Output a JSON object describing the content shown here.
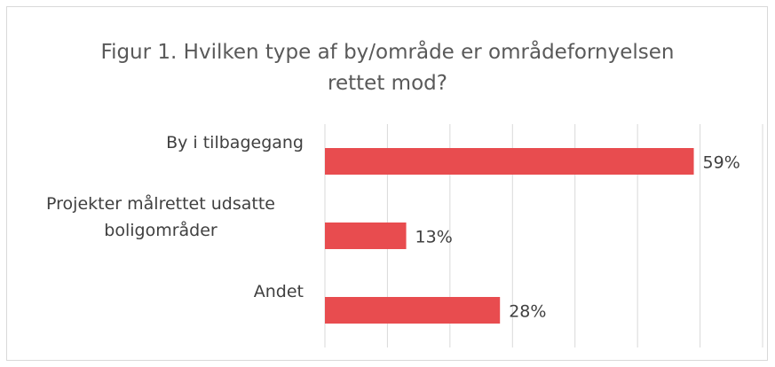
{
  "chart_data": {
    "type": "bar",
    "orientation": "horizontal",
    "title": "Figur 1. Hvilken type af by/område er områdefornyelsen rettet mod?",
    "categories": [
      "By i tilbagegang",
      "Projekter målrettet udsatte boligområder",
      "Andet"
    ],
    "values": [
      59,
      13,
      28
    ],
    "value_labels": [
      "59%",
      "13%",
      "28%"
    ],
    "color": "#e84c4f",
    "xlim": [
      0,
      70
    ],
    "xticks": [
      0,
      10,
      20,
      30,
      40,
      50,
      60,
      70
    ],
    "grid": true
  }
}
